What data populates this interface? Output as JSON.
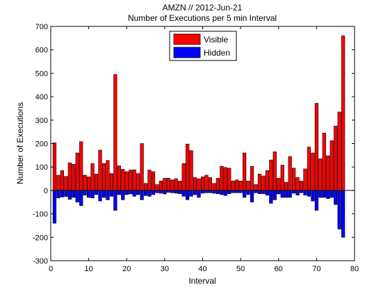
{
  "chart_data": {
    "type": "bar",
    "title": "AMZN // 2012-Jun-21",
    "subtitle": "Number of Executions per 5 min Interval",
    "xlabel": "Interval",
    "ylabel": "Number of Executions",
    "xlim": [
      0,
      80
    ],
    "ylim": [
      -300,
      700
    ],
    "xticks": [
      0,
      10,
      20,
      30,
      40,
      50,
      60,
      70,
      80
    ],
    "yticks": [
      -300,
      -200,
      -100,
      0,
      100,
      200,
      300,
      400,
      500,
      600,
      700
    ],
    "legend_position": "top-center",
    "grid": false,
    "x": [
      1,
      2,
      3,
      4,
      5,
      6,
      7,
      8,
      9,
      10,
      11,
      12,
      13,
      14,
      15,
      16,
      17,
      18,
      19,
      20,
      21,
      22,
      23,
      24,
      25,
      26,
      27,
      28,
      29,
      30,
      31,
      32,
      33,
      34,
      35,
      36,
      37,
      38,
      39,
      40,
      41,
      42,
      43,
      44,
      45,
      46,
      47,
      48,
      49,
      50,
      51,
      52,
      53,
      54,
      55,
      56,
      57,
      58,
      59,
      60,
      61,
      62,
      63,
      64,
      65,
      66,
      67,
      68,
      69,
      70,
      71,
      72,
      73,
      74,
      75,
      76,
      77,
      78
    ],
    "series": [
      {
        "name": "Visible",
        "color": "#ff0000",
        "values": [
          203,
          65,
          85,
          60,
          118,
          112,
          160,
          208,
          65,
          58,
          115,
          70,
          172,
          115,
          128,
          72,
          495,
          105,
          90,
          80,
          87,
          88,
          72,
          200,
          30,
          87,
          80,
          25,
          40,
          52,
          52,
          45,
          50,
          40,
          115,
          198,
          170,
          55,
          50,
          58,
          65,
          55,
          30,
          52,
          103,
          98,
          95,
          40,
          45,
          40,
          160,
          40,
          103,
          25,
          70,
          62,
          85,
          130,
          165,
          52,
          108,
          35,
          145,
          95,
          55,
          40,
          92,
          185,
          160,
          372,
          135,
          245,
          148,
          212,
          275,
          335,
          660,
          0
        ]
      },
      {
        "name": "Hidden",
        "color": "#0000ff",
        "values": [
          -140,
          -32,
          -28,
          -26,
          -38,
          -30,
          -50,
          -65,
          -20,
          -30,
          -32,
          -18,
          -45,
          -30,
          -40,
          -25,
          -85,
          -18,
          -40,
          -18,
          -15,
          -25,
          -18,
          -40,
          -22,
          -25,
          -18,
          -10,
          -12,
          -15,
          -8,
          -10,
          -12,
          -14,
          -25,
          -40,
          -25,
          -18,
          -30,
          -12,
          -10,
          -10,
          -12,
          -14,
          -18,
          -22,
          -14,
          -10,
          -10,
          -10,
          -30,
          -18,
          -50,
          -10,
          -14,
          -14,
          -20,
          -55,
          -40,
          -15,
          -30,
          -30,
          -30,
          -12,
          -20,
          -10,
          -20,
          -25,
          -45,
          -85,
          -30,
          -30,
          -35,
          -30,
          -60,
          -165,
          -200,
          0
        ]
      }
    ]
  }
}
